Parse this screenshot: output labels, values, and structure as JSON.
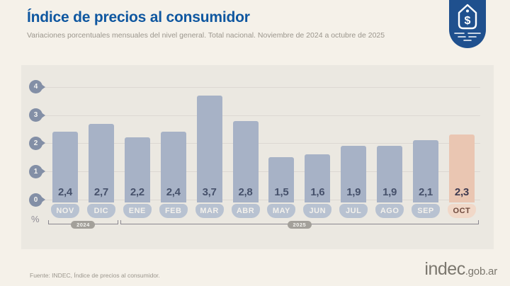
{
  "header": {
    "title": "Índice de precios al consumidor",
    "subtitle": "Variaciones porcentuales mensuales del nivel general. Total nacional. Noviembre de 2024 a octubre de 2025"
  },
  "badge": {
    "symbol": "$"
  },
  "chart_data": {
    "type": "bar",
    "title": "Índice de precios al consumidor",
    "subtitle": "Variaciones porcentuales mensuales del nivel general. Total nacional. Noviembre de 2024 a octubre de 2025",
    "unit": "%",
    "categories": [
      "NOV",
      "DIC",
      "ENE",
      "FEB",
      "MAR",
      "ABR",
      "MAY",
      "JUN",
      "JUL",
      "AGO",
      "SEP",
      "OCT"
    ],
    "values": [
      2.4,
      2.7,
      2.2,
      2.4,
      3.7,
      2.8,
      1.5,
      1.6,
      1.9,
      1.9,
      2.1,
      2.3
    ],
    "value_labels": [
      "2,4",
      "2,7",
      "2,2",
      "2,4",
      "3,7",
      "2,8",
      "1,5",
      "1,6",
      "1,9",
      "1,9",
      "2,1",
      "2,3"
    ],
    "highlight_index": 11,
    "y_ticks": [
      0,
      1,
      2,
      3,
      4
    ],
    "ylim": [
      0,
      4
    ],
    "grid": true,
    "year_groups": [
      {
        "label": "2024",
        "span": [
          0,
          1
        ]
      },
      {
        "label": "2025",
        "span": [
          2,
          11
        ]
      }
    ]
  },
  "footer": {
    "source": "Fuente: INDEC, Índice de precios al consumidor.",
    "logo_main": "indec",
    "logo_suffix": ".gob.ar"
  },
  "colors": {
    "title_blue": "#0F57A0",
    "badge_blue": "#1F508E",
    "bar": "#A7B2C6",
    "bar_highlight": "#EAC6B2",
    "month_pill": "#B8C2D1",
    "month_pill_highlight": "#F1D8C8",
    "value_text": "#46516B",
    "value_text_highlight": "#3E3A50",
    "month_text": "#F3F1EC",
    "month_text_highlight": "#6F4A3E"
  }
}
